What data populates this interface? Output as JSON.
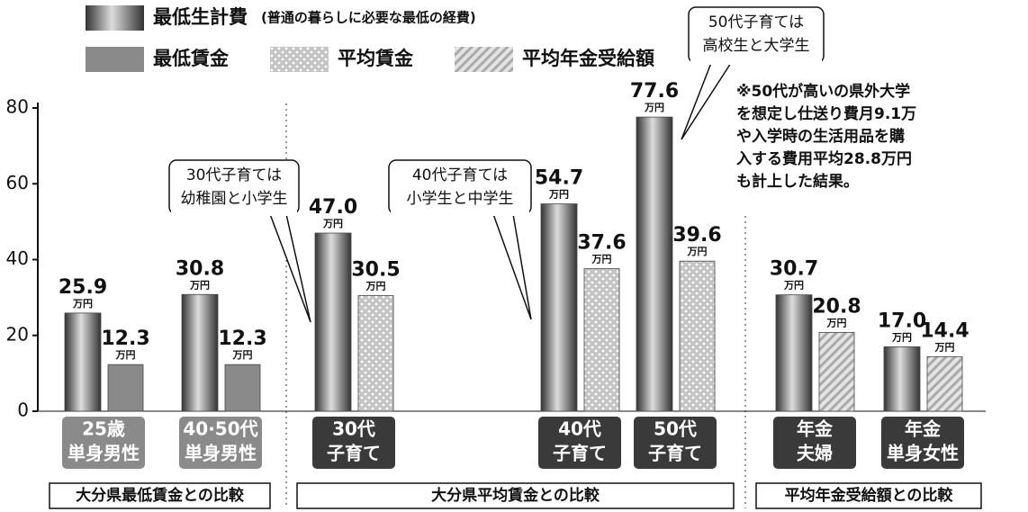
{
  "chart_data": {
    "type": "bar",
    "categories": [
      [
        "25歳",
        "単身男性"
      ],
      [
        "40·50代",
        "単身男性"
      ],
      [
        "30代",
        "子育て"
      ],
      [
        "40代",
        "子育て"
      ],
      [
        "50代",
        "子育て"
      ],
      [
        "年金",
        "夫婦"
      ],
      [
        "年金",
        "単身女性"
      ]
    ],
    "groups": [
      "大分県最低賃金との比較",
      "大分県平均賃金との比較",
      "平均年金受給額との比較"
    ],
    "legend_note": "(普通の暮らしに必要な最低の経費)",
    "unit": "万円",
    "series": [
      {
        "name": "最低生計費",
        "color": "#5a5a5a",
        "style": "cylinder",
        "values": [
          25.9,
          30.8,
          47.0,
          54.7,
          77.6,
          30.7,
          17.0
        ],
        "value_labels": [
          "25.9",
          "30.8",
          "47.0",
          "54.7",
          "77.6",
          "30.7",
          "17.0"
        ]
      },
      {
        "name": "最低賃金",
        "color": "#8a8a8a",
        "style": "solid",
        "values": [
          12.3,
          12.3,
          null,
          null,
          null,
          null,
          null
        ],
        "value_labels": [
          "12.3",
          "12.3",
          null,
          null,
          null,
          null,
          null
        ]
      },
      {
        "name": "平均賃金",
        "color": "#c4c4c4",
        "style": "dots",
        "values": [
          null,
          null,
          30.5,
          37.6,
          39.6,
          null,
          null
        ],
        "value_labels": [
          null,
          null,
          "30.5",
          "37.6",
          "39.6",
          null,
          null
        ]
      },
      {
        "name": "平均年金受給額",
        "color": "#c4c4c4",
        "style": "hatch",
        "values": [
          null,
          null,
          null,
          null,
          null,
          20.8,
          14.4
        ],
        "value_labels": [
          null,
          null,
          null,
          null,
          null,
          "20.8",
          "14.4"
        ]
      }
    ],
    "annotations": [
      [
        "30代子育ては",
        "幼稚園と小学生"
      ],
      [
        "40代子育ては",
        "小学生と中学生"
      ],
      [
        "50代子育ては",
        "高校生と大学生"
      ]
    ],
    "note": [
      "※50代が高いの県外大学",
      "を想定し仕送り費月9.1万",
      "や入学時の生活用品を購",
      "入する費用平均28.8万円",
      "も計上した結果。"
    ],
    "ylim": [
      0,
      80
    ],
    "yticks": [
      0,
      20,
      40,
      60,
      80
    ],
    "grid": false
  }
}
